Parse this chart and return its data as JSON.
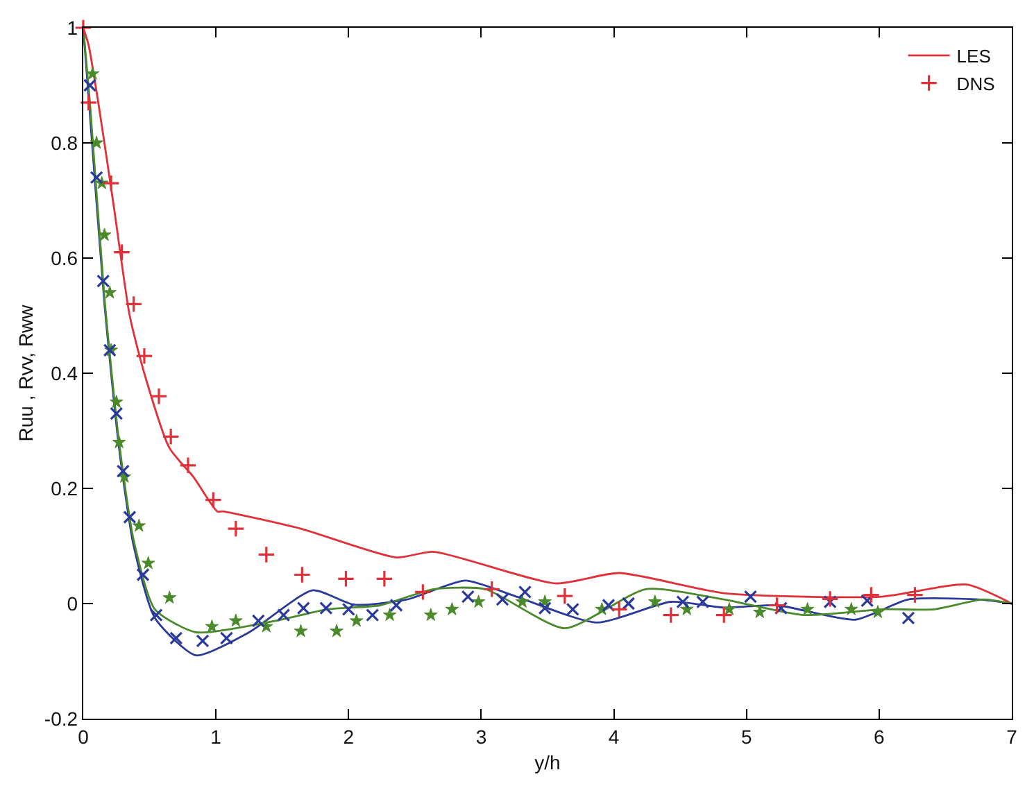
{
  "chart_data": {
    "type": "line",
    "xlabel": "y/h",
    "ylabel": "Ruu , Rvv, Rww",
    "xlim": [
      0,
      7
    ],
    "ylim": [
      -0.2,
      1
    ],
    "xticks": [
      0,
      1,
      2,
      3,
      4,
      5,
      6,
      7
    ],
    "yticks": [
      -0.2,
      0,
      0.2,
      0.4,
      0.6,
      0.8,
      1
    ],
    "legend": "top right",
    "series": [
      {
        "name": "LES",
        "color": "#e0303a",
        "marker": "none",
        "x": [
          0,
          0.04,
          0.12,
          0.23,
          0.35,
          0.46,
          0.65,
          0.83,
          1.01,
          1.05,
          1.64,
          2.36,
          2.64,
          3.56,
          4.04,
          4.83,
          6.02,
          6.66,
          7
        ],
        "values": [
          1,
          0.97,
          0.86,
          0.69,
          0.5,
          0.4,
          0.27,
          0.22,
          0.16,
          0.16,
          0.13,
          0.08,
          0.09,
          0.035,
          0.053,
          0.018,
          0.012,
          0.033,
          0
        ]
      },
      {
        "name": "DNS",
        "type": "scatter",
        "color": "#e0303a",
        "marker": "cross",
        "x": [
          0,
          0.04,
          0.21,
          0.29,
          0.38,
          0.46,
          0.57,
          0.66,
          0.79,
          0.98,
          1.15,
          1.38,
          1.65,
          1.98,
          2.27,
          2.56,
          3.08,
          3.63,
          4.04,
          4.43,
          4.83,
          5.23,
          5.63,
          5.94,
          6.27
        ],
        "values": [
          1,
          0.87,
          0.73,
          0.61,
          0.52,
          0.43,
          0.36,
          0.29,
          0.24,
          0.18,
          0.13,
          0.085,
          0.05,
          0.043,
          0.043,
          0.02,
          0.025,
          0.013,
          -0.01,
          -0.02,
          -0.02,
          -0.003,
          0.008,
          0.015,
          0.015
        ]
      },
      {
        "color": "#2a3a9a",
        "marker": "none",
        "x": [
          0,
          0.05,
          0.16,
          0.27,
          0.38,
          0.54,
          0.85,
          1.25,
          1.73,
          2.04,
          2.44,
          2.88,
          3.23,
          3.87,
          4.43,
          4.83,
          5.23,
          5.82,
          6.22,
          6.75,
          7
        ],
        "values": [
          1,
          0.85,
          0.52,
          0.27,
          0.1,
          -0.025,
          -0.09,
          -0.05,
          0.023,
          -0.002,
          0.007,
          0.04,
          0.015,
          -0.033,
          0.003,
          -0.007,
          -0.003,
          -0.028,
          0.007,
          0.007,
          0
        ]
      },
      {
        "color": "#4a8a2a",
        "marker": "none",
        "x": [
          0,
          0.05,
          0.16,
          0.27,
          0.38,
          0.54,
          0.85,
          1.45,
          1.84,
          2.24,
          2.64,
          3.03,
          3.63,
          4.24,
          4.83,
          5.43,
          6.02,
          6.42,
          6.78,
          7
        ],
        "values": [
          1,
          0.87,
          0.53,
          0.28,
          0.11,
          -0.01,
          -0.05,
          -0.03,
          -0.01,
          -0.003,
          0.025,
          0.025,
          -0.043,
          0.025,
          0.007,
          -0.02,
          -0.01,
          -0.01,
          0.007,
          0
        ]
      },
      {
        "type": "scatter",
        "color": "#2a3a9a",
        "marker": "x",
        "x": [
          0.05,
          0.1,
          0.15,
          0.2,
          0.25,
          0.3,
          0.35,
          0.45,
          0.55,
          0.7,
          0.9,
          1.08,
          1.32,
          1.51,
          1.66,
          1.83,
          2.0,
          2.18,
          2.36,
          2.9,
          3.16,
          3.33,
          3.48,
          3.69,
          3.96,
          4.11,
          4.52,
          4.67,
          5.03,
          5.26,
          5.63,
          5.91,
          6.22
        ],
        "values": [
          0.9,
          0.74,
          0.56,
          0.44,
          0.33,
          0.23,
          0.15,
          0.05,
          -0.02,
          -0.06,
          -0.065,
          -0.06,
          -0.03,
          -0.02,
          -0.008,
          -0.008,
          -0.01,
          -0.02,
          -0.003,
          0.012,
          0.007,
          0.02,
          -0.008,
          -0.01,
          -0.003,
          0,
          0.003,
          0.003,
          0.012,
          -0.008,
          0.003,
          0.005,
          -0.025
        ]
      },
      {
        "type": "scatter",
        "color": "#4a8a2a",
        "marker": "star",
        "x": [
          0.07,
          0.1,
          0.14,
          0.16,
          0.2,
          0.21,
          0.25,
          0.27,
          0.31,
          0.42,
          0.49,
          0.65,
          0.97,
          1.15,
          1.38,
          1.64,
          1.91,
          2.06,
          2.31,
          2.62,
          2.78,
          2.98,
          3.31,
          3.48,
          3.91,
          4.31,
          4.55,
          4.87,
          5.1,
          5.46,
          5.79,
          5.99
        ],
        "values": [
          0.92,
          0.8,
          0.73,
          0.64,
          0.54,
          0.44,
          0.35,
          0.28,
          0.22,
          0.135,
          0.07,
          0.01,
          -0.04,
          -0.03,
          -0.04,
          -0.048,
          -0.048,
          -0.03,
          -0.02,
          -0.02,
          -0.01,
          0.003,
          0.003,
          0.003,
          -0.01,
          0.003,
          -0.01,
          -0.01,
          -0.015,
          -0.01,
          -0.01,
          -0.015
        ]
      }
    ]
  }
}
